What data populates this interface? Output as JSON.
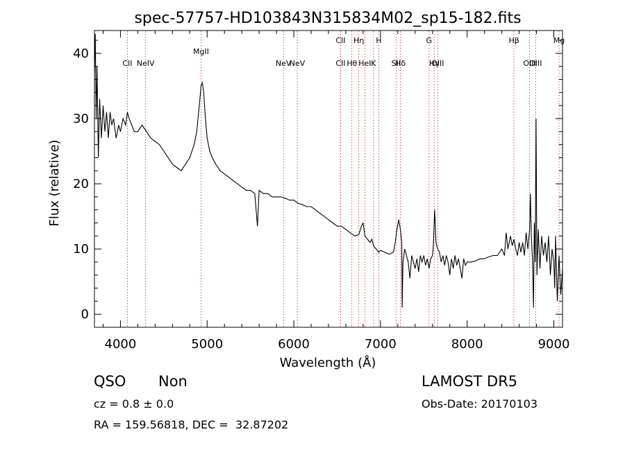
{
  "chart_data": {
    "type": "line",
    "title": "spec-57757-HD103843N315834M02_sp15-182.fits",
    "xlabel": "Wavelength (Å)",
    "ylabel": "Flux (relative)",
    "xlim": [
      3700,
      9100
    ],
    "ylim": [
      -2,
      43.5
    ],
    "xticks": [
      4000,
      5000,
      6000,
      7000,
      8000,
      9000
    ],
    "yticks": [
      0,
      10,
      20,
      30,
      40
    ],
    "grid": false,
    "colors": {
      "spectrum": "#000000",
      "lines": "#b03030",
      "axes": "#000000"
    },
    "spectrum": [
      [
        3700,
        37
      ],
      [
        3710,
        43
      ],
      [
        3720,
        30
      ],
      [
        3730,
        38
      ],
      [
        3745,
        24
      ],
      [
        3760,
        33
      ],
      [
        3780,
        27
      ],
      [
        3800,
        32
      ],
      [
        3820,
        28
      ],
      [
        3840,
        31
      ],
      [
        3860,
        27
      ],
      [
        3880,
        31
      ],
      [
        3900,
        29
      ],
      [
        3920,
        30
      ],
      [
        3950,
        27
      ],
      [
        3980,
        29
      ],
      [
        4000,
        28
      ],
      [
        4030,
        30
      ],
      [
        4060,
        29
      ],
      [
        4080,
        31
      ],
      [
        4100,
        30
      ],
      [
        4130,
        29
      ],
      [
        4160,
        28
      ],
      [
        4200,
        28
      ],
      [
        4250,
        29
      ],
      [
        4300,
        28
      ],
      [
        4350,
        27
      ],
      [
        4400,
        26.5
      ],
      [
        4450,
        26
      ],
      [
        4500,
        25
      ],
      [
        4550,
        24
      ],
      [
        4600,
        23
      ],
      [
        4650,
        22.5
      ],
      [
        4700,
        22
      ],
      [
        4750,
        23
      ],
      [
        4800,
        24
      ],
      [
        4850,
        26
      ],
      [
        4880,
        28
      ],
      [
        4910,
        32
      ],
      [
        4930,
        35
      ],
      [
        4945,
        35.5
      ],
      [
        4960,
        34
      ],
      [
        4980,
        30
      ],
      [
        5000,
        27
      ],
      [
        5030,
        25
      ],
      [
        5060,
        24
      ],
      [
        5100,
        23
      ],
      [
        5150,
        22
      ],
      [
        5200,
        21.5
      ],
      [
        5250,
        21
      ],
      [
        5300,
        20.5
      ],
      [
        5350,
        20
      ],
      [
        5400,
        19.5
      ],
      [
        5450,
        19
      ],
      [
        5500,
        19
      ],
      [
        5550,
        18.5
      ],
      [
        5580,
        13.5
      ],
      [
        5600,
        19
      ],
      [
        5650,
        18.5
      ],
      [
        5700,
        18.5
      ],
      [
        5750,
        18
      ],
      [
        5800,
        18
      ],
      [
        5850,
        18
      ],
      [
        5900,
        17.8
      ],
      [
        5950,
        17.5
      ],
      [
        6000,
        17.5
      ],
      [
        6050,
        17
      ],
      [
        6100,
        16.8
      ],
      [
        6150,
        16.5
      ],
      [
        6200,
        16.5
      ],
      [
        6250,
        16
      ],
      [
        6300,
        15.5
      ],
      [
        6350,
        15
      ],
      [
        6400,
        14.5
      ],
      [
        6450,
        14
      ],
      [
        6500,
        13.5
      ],
      [
        6550,
        13.5
      ],
      [
        6600,
        13
      ],
      [
        6650,
        12.5
      ],
      [
        6700,
        12
      ],
      [
        6750,
        12.2
      ],
      [
        6780,
        13.5
      ],
      [
        6800,
        14
      ],
      [
        6820,
        12
      ],
      [
        6850,
        11.5
      ],
      [
        6880,
        11
      ],
      [
        6900,
        11.5
      ],
      [
        6920,
        10.5
      ],
      [
        6950,
        10
      ],
      [
        6980,
        9.5
      ],
      [
        7000,
        9.8
      ],
      [
        7050,
        9.5
      ],
      [
        7100,
        9.2
      ],
      [
        7150,
        9.5
      ],
      [
        7170,
        11
      ],
      [
        7190,
        13
      ],
      [
        7210,
        14.5
      ],
      [
        7230,
        13
      ],
      [
        7245,
        11
      ],
      [
        7250,
        1
      ],
      [
        7260,
        8
      ],
      [
        7280,
        10
      ],
      [
        7300,
        9
      ],
      [
        7320,
        8
      ],
      [
        7340,
        5.5
      ],
      [
        7360,
        9
      ],
      [
        7380,
        8
      ],
      [
        7400,
        7
      ],
      [
        7420,
        8.5
      ],
      [
        7440,
        6.5
      ],
      [
        7460,
        9
      ],
      [
        7480,
        8
      ],
      [
        7500,
        9
      ],
      [
        7520,
        7.5
      ],
      [
        7540,
        8.5
      ],
      [
        7560,
        7
      ],
      [
        7580,
        8.5
      ],
      [
        7600,
        9
      ],
      [
        7610,
        10.5
      ],
      [
        7625,
        16
      ],
      [
        7640,
        11
      ],
      [
        7660,
        10
      ],
      [
        7680,
        9.5
      ],
      [
        7700,
        8
      ],
      [
        7720,
        9
      ],
      [
        7740,
        7.5
      ],
      [
        7760,
        9
      ],
      [
        7780,
        8
      ],
      [
        7800,
        6
      ],
      [
        7820,
        8.5
      ],
      [
        7840,
        7
      ],
      [
        7860,
        9
      ],
      [
        7880,
        7.5
      ],
      [
        7900,
        8.5
      ],
      [
        7920,
        7
      ],
      [
        7940,
        5.5
      ],
      [
        7960,
        8.5
      ],
      [
        7980,
        7.5
      ],
      [
        8000,
        8
      ],
      [
        8050,
        8
      ],
      [
        8100,
        8.2
      ],
      [
        8150,
        8.5
      ],
      [
        8200,
        8.5
      ],
      [
        8250,
        8.8
      ],
      [
        8300,
        9
      ],
      [
        8350,
        9
      ],
      [
        8400,
        10
      ],
      [
        8430,
        9
      ],
      [
        8450,
        12.5
      ],
      [
        8470,
        10
      ],
      [
        8500,
        12
      ],
      [
        8520,
        10.5
      ],
      [
        8540,
        11.5
      ],
      [
        8560,
        10
      ],
      [
        8580,
        9
      ],
      [
        8600,
        11
      ],
      [
        8620,
        9.5
      ],
      [
        8640,
        11
      ],
      [
        8660,
        9
      ],
      [
        8680,
        12.5
      ],
      [
        8700,
        10
      ],
      [
        8720,
        13
      ],
      [
        8730,
        18.5
      ],
      [
        8740,
        12
      ],
      [
        8755,
        8
      ],
      [
        8765,
        1
      ],
      [
        8775,
        14
      ],
      [
        8785,
        8
      ],
      [
        8795,
        30
      ],
      [
        8805,
        6
      ],
      [
        8820,
        13
      ],
      [
        8840,
        7
      ],
      [
        8860,
        12
      ],
      [
        8880,
        9
      ],
      [
        8900,
        11
      ],
      [
        8920,
        8
      ],
      [
        8940,
        12
      ],
      [
        8960,
        6
      ],
      [
        8980,
        10
      ],
      [
        9000,
        8
      ],
      [
        9010,
        4
      ],
      [
        9020,
        12
      ],
      [
        9040,
        2
      ],
      [
        9060,
        9
      ],
      [
        9080,
        3
      ],
      [
        9100,
        7
      ]
    ],
    "lines": [
      {
        "name": "CII",
        "x": 4080,
        "row": 3
      },
      {
        "name": "NeIV",
        "x": 4290,
        "row": 2
      },
      {
        "name": "MgII",
        "x": 4930,
        "row": 1
      },
      {
        "name": "NeV",
        "x": 5880,
        "row": 3
      },
      {
        "name": "NeV",
        "x": 6040,
        "row": 2
      },
      {
        "name": "CII",
        "x": 6540,
        "row": 3
      },
      {
        "name": "CII",
        "x": 6540,
        "row": 0
      },
      {
        "name": "Hθ",
        "x": 6670,
        "row": 2
      },
      {
        "name": "Hη",
        "x": 6750,
        "row": 0
      },
      {
        "name": "HeI",
        "x": 6820,
        "row": 3
      },
      {
        "name": "K",
        "x": 6920,
        "row": 2
      },
      {
        "name": "H",
        "x": 6980,
        "row": 0
      },
      {
        "name": "SII",
        "x": 7180,
        "row": 3
      },
      {
        "name": "Hδ",
        "x": 7230,
        "row": 2
      },
      {
        "name": "G",
        "x": 7560,
        "row": 0
      },
      {
        "name": "Hγ",
        "x": 7620,
        "row": 3
      },
      {
        "name": "OIII",
        "x": 7660,
        "row": 2
      },
      {
        "name": "Hβ",
        "x": 8540,
        "row": 0
      },
      {
        "name": "OIII",
        "x": 8720,
        "row": 3
      },
      {
        "name": "OIII",
        "x": 8790,
        "row": 2
      },
      {
        "name": "Mg",
        "x": 9060,
        "row": 0
      }
    ]
  },
  "info": {
    "class": "QSO",
    "subclass": "Non",
    "cz": "cz = 0.8 ± 0.0",
    "radec": "RA = 159.56818, DEC =  32.87202",
    "release": "LAMOST DR5",
    "obsdate": "Obs-Date: 20170103"
  }
}
